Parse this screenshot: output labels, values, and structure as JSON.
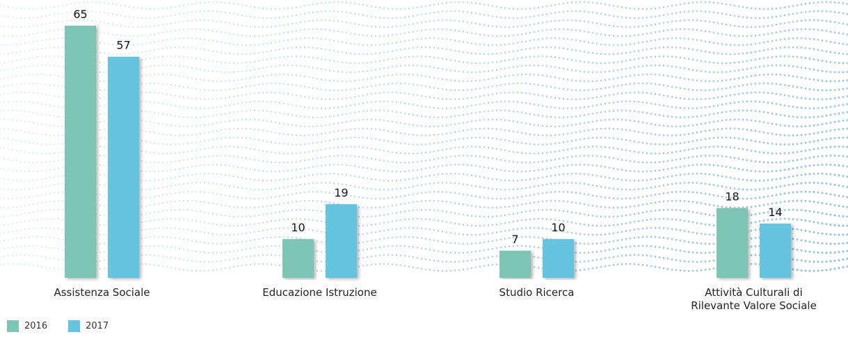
{
  "chart_data": {
    "type": "bar",
    "categories": [
      "Assistenza Sociale",
      "Educazione Istruzione",
      "Studio Ricerca",
      "Attività Culturali di\nRilevante Valore Sociale"
    ],
    "series": [
      {
        "name": "2016",
        "color": "#7dc5b4",
        "values": [
          65,
          10,
          7,
          18
        ]
      },
      {
        "name": "2017",
        "color": "#65c5e0",
        "values": [
          57,
          19,
          10,
          14
        ]
      }
    ],
    "ylim": [
      0,
      65
    ],
    "grid": false,
    "legend_position": "bottom-left",
    "data_labels": true,
    "title": "",
    "xlabel": "",
    "ylabel": ""
  }
}
